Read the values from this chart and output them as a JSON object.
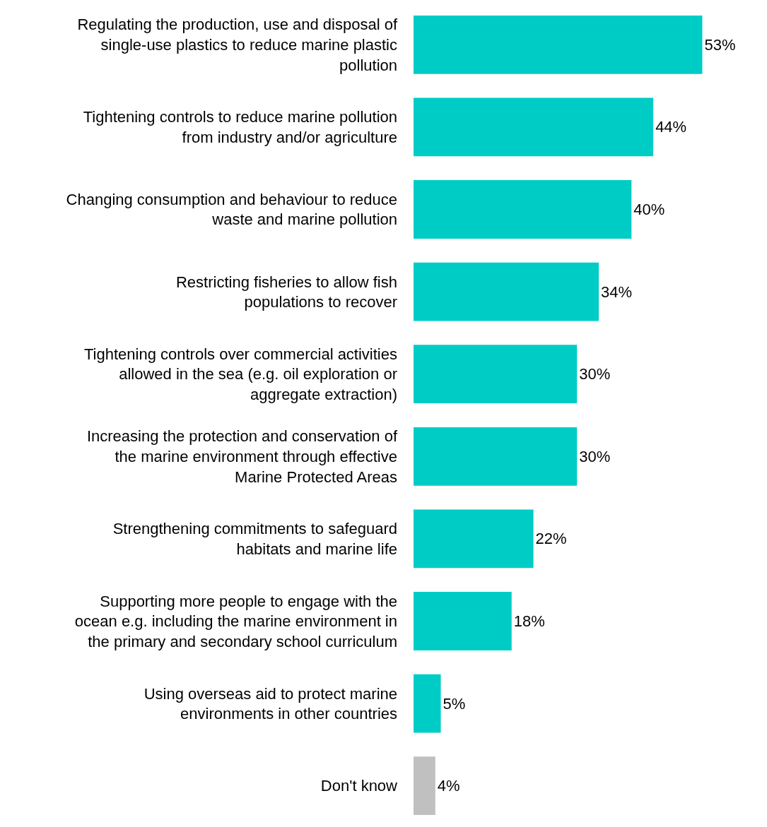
{
  "chart_data": {
    "type": "bar",
    "orientation": "horizontal",
    "categories": [
      "Regulating the production, use and disposal of single-use plastics to reduce marine plastic pollution",
      "Tightening controls to reduce marine pollution from industry and/or agriculture",
      "Changing consumption and behaviour to reduce waste and marine pollution",
      "Restricting fisheries to allow fish populations to recover",
      "Tightening controls over commercial activities allowed in the sea (e.g. oil exploration or aggregate extraction)",
      "Increasing the protection and conservation of the marine environment through effective Marine Protected Areas",
      "Strengthening commitments to safeguard habitats and marine life",
      "Supporting more people to engage with the ocean e.g. including the marine environment in the primary and secondary school curriculum",
      "Using overseas aid to protect marine environments in other countries",
      "Don't know"
    ],
    "values": [
      53,
      44,
      40,
      34,
      30,
      30,
      22,
      18,
      5,
      4
    ],
    "value_labels": [
      "53%",
      "44%",
      "40%",
      "34%",
      "30%",
      "30%",
      "22%",
      "18%",
      "5%",
      "4%"
    ],
    "colors": [
      "#00ccc6",
      "#00ccc6",
      "#00ccc6",
      "#00ccc6",
      "#00ccc6",
      "#00ccc6",
      "#00ccc6",
      "#00ccc6",
      "#00ccc6",
      "#c0c0c0"
    ]
  }
}
